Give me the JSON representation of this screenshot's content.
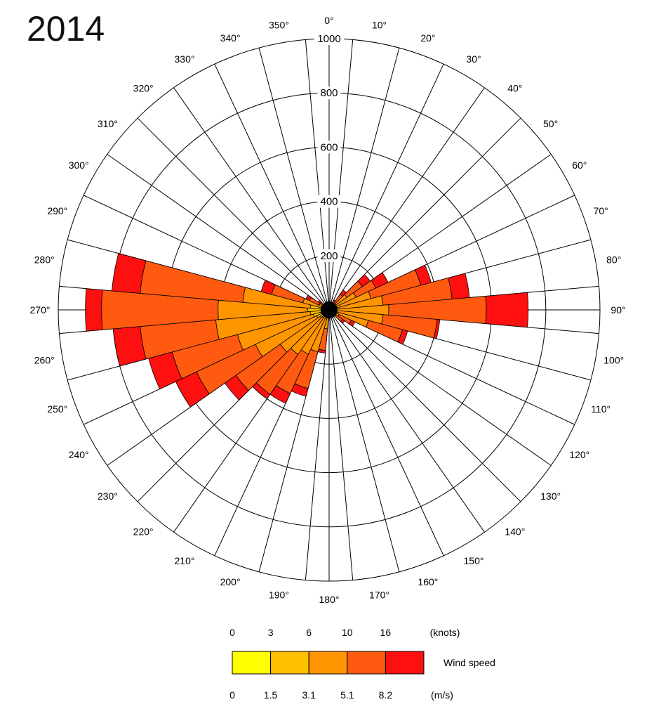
{
  "title": "2014",
  "chart_data": {
    "type": "wind_rose",
    "title": "2014",
    "angular_labels": [
      "0°",
      "10°",
      "20°",
      "30°",
      "40°",
      "50°",
      "60°",
      "70°",
      "80°",
      "90°",
      "100°",
      "110°",
      "120°",
      "130°",
      "140°",
      "150°",
      "160°",
      "170°",
      "180°",
      "190°",
      "200°",
      "210°",
      "220°",
      "230°",
      "240°",
      "250°",
      "260°",
      "270°",
      "280°",
      "290°",
      "300°",
      "310°",
      "320°",
      "330°",
      "340°",
      "350°"
    ],
    "radial_ticks": [
      200,
      400,
      600,
      800,
      1000
    ],
    "radial_max": 1000,
    "sector_width_deg": 10,
    "speed_bins_knots": [
      "0",
      "3",
      "6",
      "10",
      "16"
    ],
    "speed_bins_ms": [
      "0",
      "1.5",
      "3.1",
      "5.1",
      "8.2"
    ],
    "speed_unit_knots": "(knots)",
    "speed_unit_ms": "(m/s)",
    "legend_label": "Wind speed",
    "bin_colors": [
      "#ffff00",
      "#ffc000",
      "#ff9500",
      "#ff5a10",
      "#ff1010"
    ],
    "directions": [
      0,
      10,
      20,
      30,
      40,
      50,
      60,
      70,
      80,
      90,
      100,
      110,
      120,
      130,
      140,
      150,
      160,
      170,
      180,
      190,
      200,
      210,
      220,
      230,
      240,
      250,
      260,
      270,
      280,
      290,
      300,
      310,
      320,
      330,
      340,
      350
    ],
    "cumulative_counts": [
      [
        0,
        2,
        5,
        8,
        10
      ],
      [
        0,
        2,
        5,
        8,
        12
      ],
      [
        0,
        3,
        8,
        12,
        15
      ],
      [
        0,
        5,
        15,
        30,
        40
      ],
      [
        0,
        8,
        30,
        70,
        90
      ],
      [
        0,
        15,
        80,
        150,
        185
      ],
      [
        0,
        20,
        110,
        190,
        240
      ],
      [
        0,
        25,
        160,
        350,
        390
      ],
      [
        0,
        25,
        200,
        455,
        520
      ],
      [
        0,
        30,
        220,
        580,
        735
      ],
      [
        0,
        25,
        200,
        400,
        410
      ],
      [
        0,
        20,
        150,
        280,
        300
      ],
      [
        0,
        12,
        40,
        90,
        105
      ],
      [
        0,
        10,
        30,
        60,
        70
      ],
      [
        0,
        5,
        15,
        25,
        30
      ],
      [
        0,
        3,
        8,
        12,
        15
      ],
      [
        0,
        2,
        5,
        8,
        10
      ],
      [
        0,
        2,
        5,
        8,
        10
      ],
      [
        0,
        2,
        8,
        15,
        20
      ],
      [
        0,
        10,
        70,
        150,
        160
      ],
      [
        0,
        25,
        160,
        300,
        330
      ],
      [
        0,
        30,
        180,
        340,
        380
      ],
      [
        0,
        35,
        200,
        380,
        400
      ],
      [
        0,
        40,
        220,
        420,
        470
      ],
      [
        0,
        50,
        300,
        540,
        625
      ],
      [
        0,
        60,
        350,
        600,
        690
      ],
      [
        0,
        70,
        420,
        700,
        800
      ],
      [
        0,
        80,
        410,
        840,
        900
      ],
      [
        0,
        70,
        320,
        700,
        805
      ],
      [
        0,
        20,
        100,
        220,
        260
      ],
      [
        0,
        10,
        40,
        80,
        95
      ],
      [
        0,
        5,
        20,
        40,
        50
      ],
      [
        0,
        3,
        10,
        20,
        25
      ],
      [
        0,
        2,
        8,
        12,
        15
      ],
      [
        0,
        2,
        5,
        8,
        10
      ],
      [
        0,
        2,
        5,
        8,
        10
      ]
    ]
  }
}
